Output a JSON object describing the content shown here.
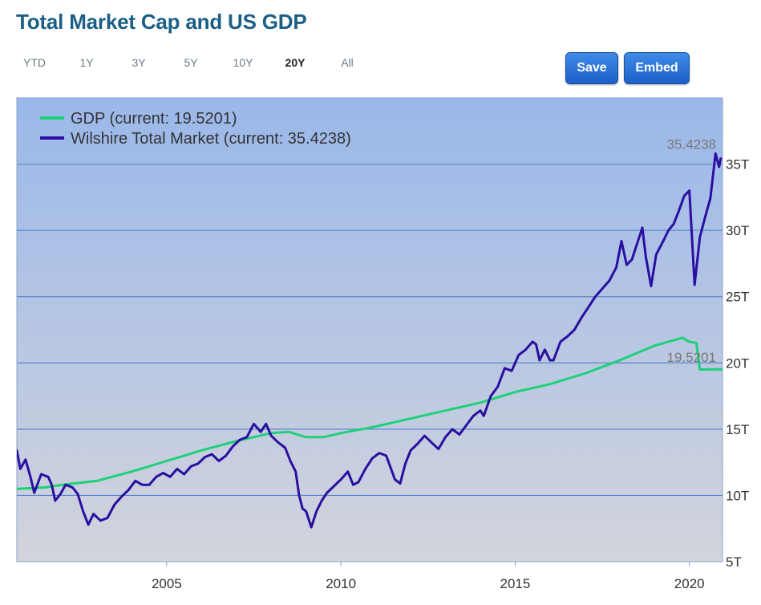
{
  "page": {
    "title": "Total Market Cap and US GDP"
  },
  "toolbar": {
    "ranges": [
      "YTD",
      "1Y",
      "3Y",
      "5Y",
      "10Y",
      "20Y",
      "All"
    ],
    "active_range": "20Y",
    "save_label": "Save",
    "embed_label": "Embed"
  },
  "colors": {
    "gdp": "#1fd07a",
    "wilshire": "#2a0fa0",
    "plot_top": "#9ab8ea",
    "plot_bottom": "#d3d4dc",
    "grid": "#5b86c9",
    "title": "#1b5f86",
    "button": "#2a6fd8"
  },
  "chart_data": {
    "type": "line",
    "title": "Total Market Cap and US GDP",
    "xlabel": "",
    "ylabel": "",
    "xlim": [
      2000.7,
      2020.95
    ],
    "ylim": [
      5,
      40
    ],
    "x_ticks": [
      2005,
      2010,
      2015,
      2020
    ],
    "x_tick_labels": [
      "2005",
      "2010",
      "2015",
      "2020"
    ],
    "y_ticks": [
      5,
      10,
      15,
      20,
      25,
      30,
      35
    ],
    "y_tick_labels": [
      "5T",
      "10T",
      "15T",
      "20T",
      "25T",
      "30T",
      "35T"
    ],
    "grid": "horizontal",
    "legend_position": "top-left",
    "series": [
      {
        "name": "GDP",
        "legend_label": "GDP (current: 19.5201)",
        "end_label": "19.5201",
        "points": [
          [
            2000.7,
            10.5
          ],
          [
            2001.5,
            10.6
          ],
          [
            2002.0,
            10.8
          ],
          [
            2003.0,
            11.1
          ],
          [
            2004.0,
            11.8
          ],
          [
            2005.0,
            12.6
          ],
          [
            2006.0,
            13.4
          ],
          [
            2007.0,
            14.1
          ],
          [
            2008.0,
            14.7
          ],
          [
            2008.5,
            14.8
          ],
          [
            2009.0,
            14.4
          ],
          [
            2009.5,
            14.4
          ],
          [
            2010.0,
            14.7
          ],
          [
            2011.0,
            15.2
          ],
          [
            2012.0,
            15.8
          ],
          [
            2013.0,
            16.4
          ],
          [
            2014.0,
            17.0
          ],
          [
            2015.0,
            17.8
          ],
          [
            2016.0,
            18.4
          ],
          [
            2017.0,
            19.2
          ],
          [
            2018.0,
            20.2
          ],
          [
            2019.0,
            21.3
          ],
          [
            2019.8,
            21.9
          ],
          [
            2020.0,
            21.6
          ],
          [
            2020.2,
            21.5
          ],
          [
            2020.3,
            19.5
          ],
          [
            2020.95,
            19.52
          ]
        ]
      },
      {
        "name": "Wilshire Total Market",
        "legend_label": "Wilshire Total Market (current: 35.4238)",
        "end_label": "35.4238",
        "points": [
          [
            2000.7,
            13.4
          ],
          [
            2000.8,
            12.0
          ],
          [
            2000.95,
            12.7
          ],
          [
            2001.1,
            11.3
          ],
          [
            2001.2,
            10.2
          ],
          [
            2001.4,
            11.6
          ],
          [
            2001.6,
            11.4
          ],
          [
            2001.7,
            10.8
          ],
          [
            2001.8,
            9.6
          ],
          [
            2001.95,
            10.1
          ],
          [
            2002.1,
            10.8
          ],
          [
            2002.3,
            10.6
          ],
          [
            2002.45,
            10.1
          ],
          [
            2002.6,
            8.8
          ],
          [
            2002.75,
            7.8
          ],
          [
            2002.9,
            8.6
          ],
          [
            2003.1,
            8.1
          ],
          [
            2003.3,
            8.3
          ],
          [
            2003.5,
            9.3
          ],
          [
            2003.7,
            9.9
          ],
          [
            2003.9,
            10.4
          ],
          [
            2004.1,
            11.1
          ],
          [
            2004.3,
            10.8
          ],
          [
            2004.5,
            10.8
          ],
          [
            2004.7,
            11.4
          ],
          [
            2004.9,
            11.7
          ],
          [
            2005.1,
            11.4
          ],
          [
            2005.3,
            12.0
          ],
          [
            2005.5,
            11.6
          ],
          [
            2005.7,
            12.2
          ],
          [
            2005.9,
            12.4
          ],
          [
            2006.1,
            12.9
          ],
          [
            2006.3,
            13.1
          ],
          [
            2006.5,
            12.6
          ],
          [
            2006.7,
            13.0
          ],
          [
            2006.9,
            13.7
          ],
          [
            2007.1,
            14.2
          ],
          [
            2007.3,
            14.4
          ],
          [
            2007.5,
            15.4
          ],
          [
            2007.7,
            14.8
          ],
          [
            2007.85,
            15.4
          ],
          [
            2008.0,
            14.5
          ],
          [
            2008.2,
            14.0
          ],
          [
            2008.4,
            13.6
          ],
          [
            2008.55,
            12.6
          ],
          [
            2008.7,
            11.8
          ],
          [
            2008.8,
            10.0
          ],
          [
            2008.9,
            9.0
          ],
          [
            2009.0,
            8.8
          ],
          [
            2009.15,
            7.6
          ],
          [
            2009.3,
            8.8
          ],
          [
            2009.45,
            9.6
          ],
          [
            2009.6,
            10.2
          ],
          [
            2009.8,
            10.7
          ],
          [
            2010.0,
            11.2
          ],
          [
            2010.2,
            11.8
          ],
          [
            2010.35,
            10.8
          ],
          [
            2010.5,
            11.0
          ],
          [
            2010.7,
            12.0
          ],
          [
            2010.9,
            12.8
          ],
          [
            2011.1,
            13.2
          ],
          [
            2011.3,
            13.0
          ],
          [
            2011.55,
            11.2
          ],
          [
            2011.7,
            10.9
          ],
          [
            2011.85,
            12.4
          ],
          [
            2012.0,
            13.4
          ],
          [
            2012.2,
            13.9
          ],
          [
            2012.4,
            14.5
          ],
          [
            2012.6,
            14.0
          ],
          [
            2012.8,
            13.5
          ],
          [
            2013.0,
            14.4
          ],
          [
            2013.2,
            15.0
          ],
          [
            2013.4,
            14.6
          ],
          [
            2013.6,
            15.3
          ],
          [
            2013.8,
            16.0
          ],
          [
            2014.0,
            16.4
          ],
          [
            2014.1,
            16.0
          ],
          [
            2014.3,
            17.5
          ],
          [
            2014.5,
            18.2
          ],
          [
            2014.7,
            19.6
          ],
          [
            2014.9,
            19.4
          ],
          [
            2015.1,
            20.6
          ],
          [
            2015.3,
            21.0
          ],
          [
            2015.5,
            21.6
          ],
          [
            2015.6,
            21.4
          ],
          [
            2015.7,
            20.2
          ],
          [
            2015.85,
            21.0
          ],
          [
            2016.0,
            20.2
          ],
          [
            2016.1,
            20.2
          ],
          [
            2016.3,
            21.6
          ],
          [
            2016.5,
            22.0
          ],
          [
            2016.7,
            22.5
          ],
          [
            2016.9,
            23.4
          ],
          [
            2017.1,
            24.2
          ],
          [
            2017.3,
            25.0
          ],
          [
            2017.5,
            25.6
          ],
          [
            2017.7,
            26.2
          ],
          [
            2017.9,
            27.2
          ],
          [
            2018.05,
            29.2
          ],
          [
            2018.2,
            27.4
          ],
          [
            2018.35,
            27.8
          ],
          [
            2018.5,
            29.0
          ],
          [
            2018.65,
            30.2
          ],
          [
            2018.75,
            28.0
          ],
          [
            2018.9,
            25.8
          ],
          [
            2019.05,
            28.2
          ],
          [
            2019.25,
            29.2
          ],
          [
            2019.4,
            30.0
          ],
          [
            2019.55,
            30.5
          ],
          [
            2019.7,
            31.5
          ],
          [
            2019.85,
            32.6
          ],
          [
            2020.0,
            33.0
          ],
          [
            2020.15,
            25.9
          ],
          [
            2020.3,
            29.5
          ],
          [
            2020.45,
            31.0
          ],
          [
            2020.6,
            32.4
          ],
          [
            2020.75,
            35.8
          ],
          [
            2020.85,
            34.8
          ],
          [
            2020.9,
            35.42
          ]
        ]
      }
    ]
  }
}
